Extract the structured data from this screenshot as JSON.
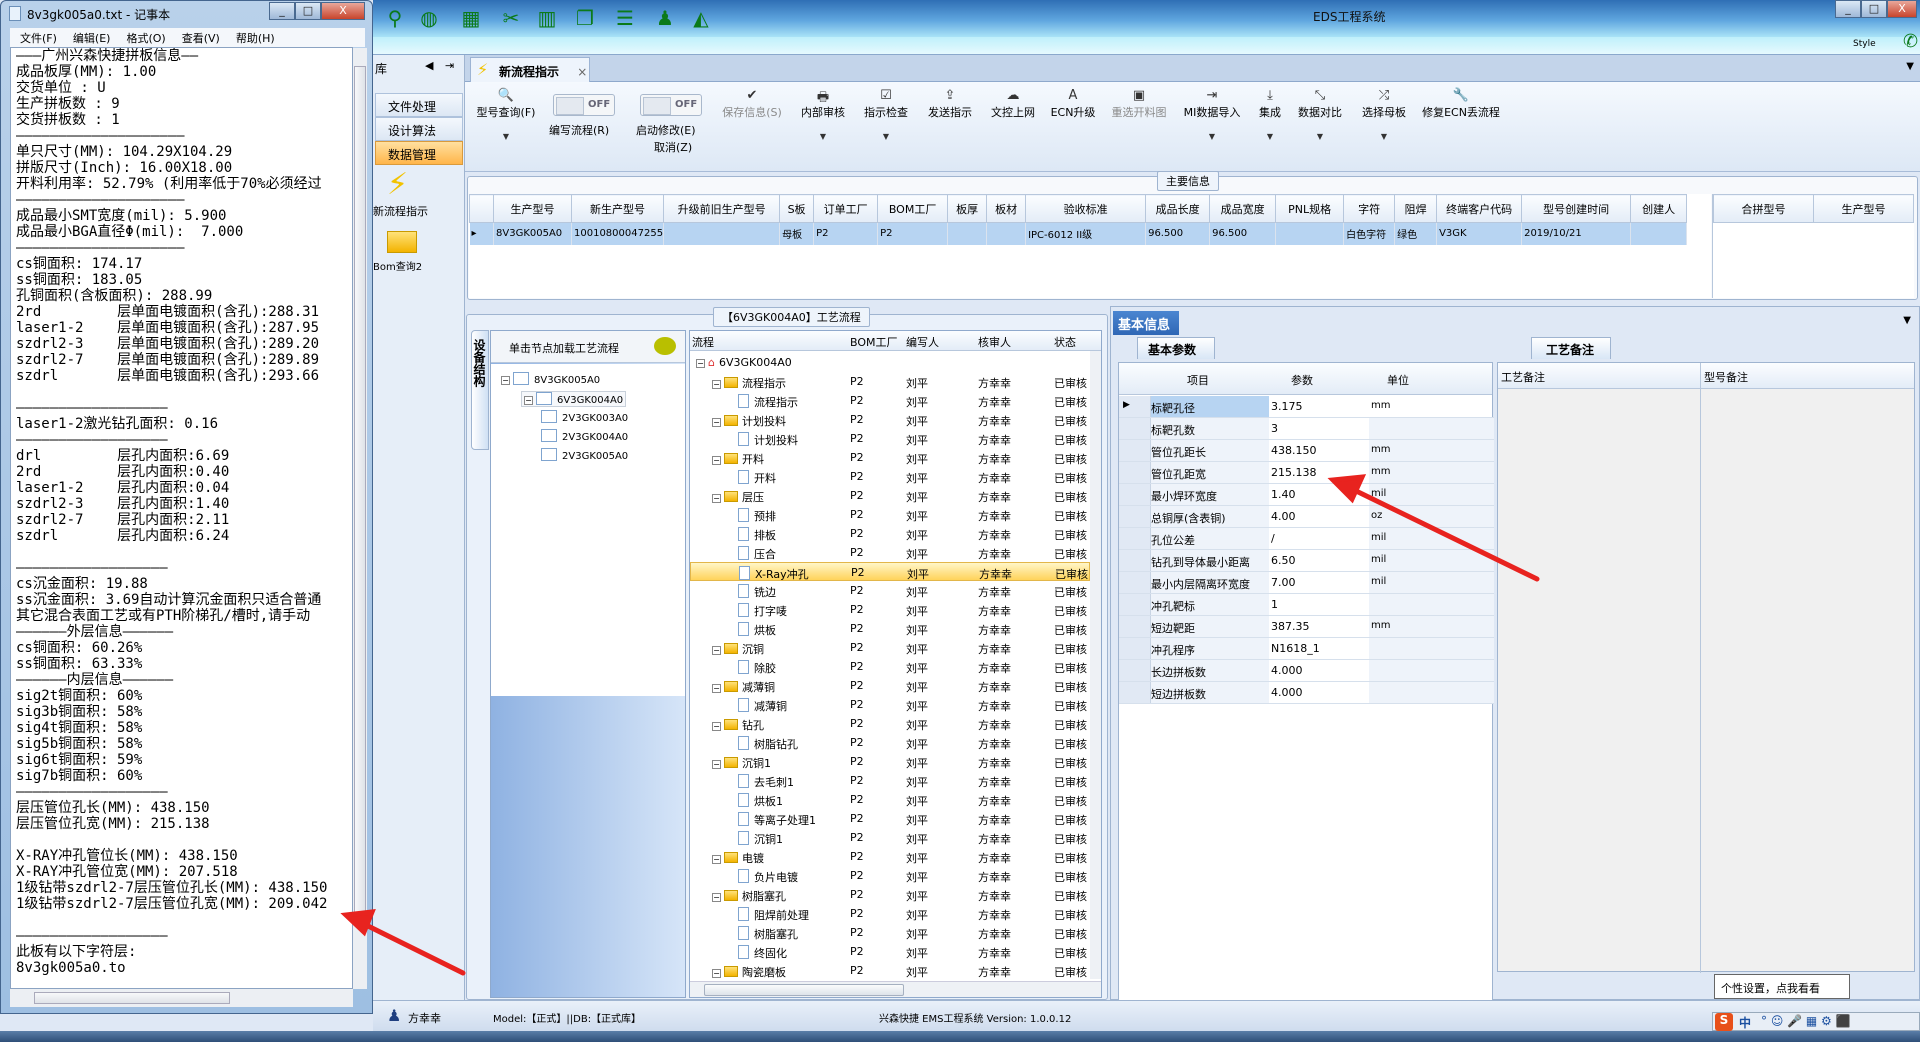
{
  "notepad": {
    "title": "8v3gk005a0.txt - 记事本",
    "menu": [
      "文件(F)",
      "编辑(E)",
      "格式(O)",
      "查看(V)",
      "帮助(H)"
    ],
    "lines": [
      "———广州兴森快捷拼板信息——",
      "成品板厚(MM): 1.00",
      "交货单位 : U",
      "生产拼板数 : 9",
      "交货拼板数 : 1",
      "————————————————————",
      "单只尺寸(MM): 104.29X104.29",
      "拼版尺寸(Inch): 16.00X18.00",
      "开料利用率: 52.79% (利用率低于70%必须经过",
      "————————————————————",
      "成品最小SMT宽度(mil): 5.900",
      "成品最小BGA直径Φ(mil):  7.000",
      "————————————————————",
      "cs铜面积: 174.17",
      "ss铜面积: 183.05",
      "孔铜面积(含板面积): 288.99",
      "2rd         层单面电镀面积(含孔):288.31",
      "laser1-2    层单面电镀面积(含孔):287.95",
      "szdrl2-3    层单面电镀面积(含孔):289.20",
      "szdrl2-7    层单面电镀面积(含孔):289.89",
      "szdrl       层单面电镀面积(含孔):293.66",
      "",
      "——————————————————",
      "laser1-2激光钻孔面积: 0.16",
      "——————————————————",
      "drl         层孔内面积:6.69",
      "2rd         层孔内面积:0.40",
      "laser1-2    层孔内面积:0.04",
      "szdrl2-3    层孔内面积:1.40",
      "szdrl2-7    层孔内面积:2.11",
      "szdrl       层孔内面积:6.24",
      "",
      "——————————————————",
      "cs沉金面积: 19.88",
      "ss沉金面积: 3.69自动计算沉金面积只适合普通",
      "其它混合表面工艺或有PTH阶梯孔/槽时,请手动",
      "——————外层信息——————",
      "cs铜面积: 60.26%",
      "ss铜面积: 63.33%",
      "——————内层信息——————",
      "sig2t铜面积: 60%",
      "sig3b铜面积: 58%",
      "sig4t铜面积: 58%",
      "sig5b铜面积: 58%",
      "sig6t铜面积: 59%",
      "sig7b铜面积: 60%",
      "——————————————————",
      "层压管位孔长(MM): 438.150",
      "层压管位孔宽(MM): 215.138",
      "",
      "X-RAY冲孔管位长(MM): 438.150",
      "X-RAY冲孔管位宽(MM): 207.518",
      "1级钻带szdrl2-7层压管位孔长(MM): 438.150",
      "1级钻带szdrl2-7层压管位孔宽(MM): 209.042",
      "",
      "——————————————————",
      "此板有以下字符层:",
      "8v3gk005a0.to"
    ]
  },
  "app": {
    "title": "EDS工程系统",
    "style_label": "Style",
    "left_header": "库",
    "nav_items": [
      {
        "label": "文件处理"
      },
      {
        "label": "设计算法"
      },
      {
        "label": "数据管理",
        "selected": true
      }
    ],
    "nav_icons": [
      {
        "label": "新流程指示",
        "icon": "lightning-icon"
      },
      {
        "label": "Bom查询2",
        "icon": "folder-open-icon"
      }
    ],
    "tab": "新流程指示",
    "toolbar": [
      {
        "label": "型号查询(F)",
        "icon": "🔍",
        "dropdown": true
      },
      {
        "label": "编写流程(R)",
        "toggle": "OFF"
      },
      {
        "label": "启动修改(E)",
        "label2": "取消(Z)",
        "toggle": "OFF"
      },
      {
        "label": "保存信息(S)",
        "icon": "✔",
        "disabled": true
      },
      {
        "label": "内部审核",
        "icon": "🖶",
        "dropdown": true
      },
      {
        "label": "指示检查",
        "icon": "☑",
        "dropdown": true
      },
      {
        "label": "发送指示",
        "icon": "⇪"
      },
      {
        "label": "文控上网",
        "icon": "☁"
      },
      {
        "label": "ECN升级",
        "icon": "A"
      },
      {
        "label": "重选开料图",
        "icon": "▣",
        "disabled": true
      },
      {
        "label": "MI数据导入",
        "icon": "⇥",
        "dropdown": true
      },
      {
        "label": "集成",
        "icon": "⤓",
        "dropdown": true
      },
      {
        "label": "数据对比",
        "icon": "⤡",
        "dropdown": true
      },
      {
        "label": "选择母板",
        "icon": "⤮",
        "dropdown": true
      },
      {
        "label": "修复ECN丢流程",
        "icon": "🔧"
      }
    ],
    "main_info": {
      "label": "主要信息",
      "columns": [
        "生产型号",
        "新生产型号",
        "升级前旧生产型号",
        "S板",
        "订单工厂",
        "BOM工厂",
        "板厚",
        "板材",
        "验收标准",
        "成品长度",
        "成品宽度",
        "PNL规格",
        "字符",
        "阻焊",
        "终端客户代码",
        "型号创建时间",
        "创建人"
      ],
      "rows": [
        [
          "8V3GK005A0",
          "10010800047255",
          "",
          "母板",
          "P2",
          "P2",
          "",
          "",
          "IPC-6012 II级",
          "96.500",
          "96.500",
          "",
          "白色字符",
          "绿色",
          "V3GK",
          "2019/10/21",
          ""
        ]
      ],
      "side_columns": [
        "合拼型号",
        "生产型号"
      ]
    },
    "process": {
      "title": "【6V3GK004A0】工艺流程",
      "vertical_tab": "设备结构",
      "tree_header": "单击节点加载工艺流程",
      "tree": [
        {
          "label": "8V3GK005A0",
          "level": 0
        },
        {
          "label": "6V3GK004A0",
          "level": 1,
          "selected": true
        },
        {
          "label": "2V3GK003A0",
          "level": 2
        },
        {
          "label": "2V3GK004A0",
          "level": 2
        },
        {
          "label": "2V3GK005A0",
          "level": 2
        }
      ],
      "columns": [
        "流程",
        "BOM工厂",
        "编写人",
        "核审人",
        "状态"
      ],
      "root": "6V3GK004A0",
      "rows": [
        {
          "name": "流程指示",
          "type": "folder"
        },
        {
          "name": "流程指示",
          "type": "doc"
        },
        {
          "name": "计划投料",
          "type": "folder"
        },
        {
          "name": "计划投料",
          "type": "doc"
        },
        {
          "name": "开料",
          "type": "folder"
        },
        {
          "name": "开料",
          "type": "doc"
        },
        {
          "name": "层压",
          "type": "folder"
        },
        {
          "name": "预排",
          "type": "doc"
        },
        {
          "name": "排板",
          "type": "doc"
        },
        {
          "name": "压合",
          "type": "doc"
        },
        {
          "name": "X-Ray冲孔",
          "type": "doc",
          "selected": true
        },
        {
          "name": "铣边",
          "type": "doc"
        },
        {
          "name": "打字唛",
          "type": "doc"
        },
        {
          "name": "烘板",
          "type": "doc"
        },
        {
          "name": "沉铜",
          "type": "folder"
        },
        {
          "name": "除胶",
          "type": "doc"
        },
        {
          "name": "减薄铜",
          "type": "folder"
        },
        {
          "name": "减薄铜",
          "type": "doc"
        },
        {
          "name": "钻孔",
          "type": "folder"
        },
        {
          "name": "树脂钻孔",
          "type": "doc"
        },
        {
          "name": "沉铜1",
          "type": "folder"
        },
        {
          "name": "去毛刺1",
          "type": "doc"
        },
        {
          "name": "烘板1",
          "type": "doc"
        },
        {
          "name": "等离子处理1",
          "type": "doc"
        },
        {
          "name": "沉铜1",
          "type": "doc"
        },
        {
          "name": "电镀",
          "type": "folder"
        },
        {
          "name": "负片电镀",
          "type": "doc"
        },
        {
          "name": "树脂塞孔",
          "type": "folder"
        },
        {
          "name": "阻焊前处理",
          "type": "doc"
        },
        {
          "name": "树脂塞孔",
          "type": "doc"
        },
        {
          "name": "终固化",
          "type": "doc"
        },
        {
          "name": "陶瓷磨板",
          "type": "folder"
        }
      ],
      "bom_factory": "P2",
      "writer": "刘平",
      "reviewer": "方幸幸",
      "status": "已审核"
    },
    "basic_info": {
      "header": "基本信息",
      "tab": "基本参数",
      "columns": [
        "项目",
        "参数",
        "单位"
      ],
      "rows": [
        [
          "标靶孔径",
          "3.175",
          "mm"
        ],
        [
          "标靶孔数",
          "3",
          ""
        ],
        [
          "管位孔距长",
          "438.150",
          "mm"
        ],
        [
          "管位孔距宽",
          "215.138",
          "mm"
        ],
        [
          "最小焊环宽度",
          "1.40",
          "mil"
        ],
        [
          "总铜厚(含表铜)",
          "4.00",
          "oz"
        ],
        [
          "孔位公差",
          "/",
          "mil"
        ],
        [
          "钻孔到导体最小距离",
          "6.50",
          "mil"
        ],
        [
          "最小内层隔离环宽度",
          "7.00",
          "mil"
        ],
        [
          "冲孔靶标",
          "1",
          ""
        ],
        [
          "短边靶距",
          "387.35",
          "mm"
        ],
        [
          "冲孔程序",
          "N1618_1",
          ""
        ],
        [
          "长边拼板数",
          "4.000",
          ""
        ],
        [
          "短边拼板数",
          "4.000",
          ""
        ]
      ]
    },
    "remarks": {
      "tab": "工艺备注",
      "columns": [
        "工艺备注",
        "型号备注"
      ]
    },
    "status": {
      "user": "方幸幸",
      "model": "Model:【正式】||DB:【正式库】",
      "version": "兴森快捷 EMS工程系统 Version: 1.0.0.12",
      "tooltip": "个性设置，点我看看",
      "ime": "中"
    },
    "colors": {
      "selected_row": "#b7d4f2",
      "nav_selected": "#ffb54a",
      "flow_selected": "#ffd35a",
      "annotation_arrow": "#e8231f"
    }
  }
}
